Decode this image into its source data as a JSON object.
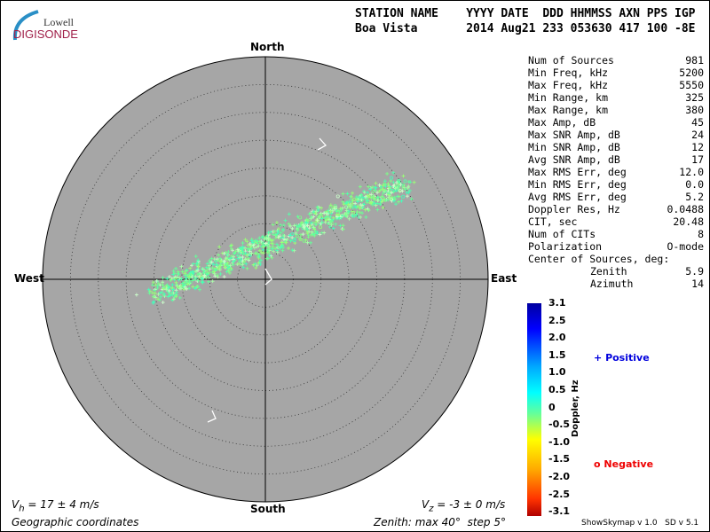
{
  "logo": {
    "line1": "Lowell",
    "line2": "DIGISONDE"
  },
  "header": {
    "labels": "STATION NAME    YYYY DATE  DDD HHMMSS AXN PPS IGP",
    "values": "Boa Vista       2014 Aug21 233 053630 417 100 -8E"
  },
  "compass": {
    "north": "North",
    "south": "South",
    "east": "East",
    "west": "West"
  },
  "stats": [
    {
      "label": "Num of Sources",
      "value": "981"
    },
    {
      "label": "Min Freq, kHz",
      "value": "5200"
    },
    {
      "label": "Max Freq, kHz",
      "value": "5550"
    },
    {
      "label": "Min Range, km",
      "value": "325"
    },
    {
      "label": "Max Range, km",
      "value": "380"
    },
    {
      "label": "Max Amp, dB",
      "value": "45"
    },
    {
      "label": "Max SNR Amp, dB",
      "value": "24"
    },
    {
      "label": "Min SNR Amp, dB",
      "value": "12"
    },
    {
      "label": "Avg SNR Amp, dB",
      "value": "17"
    },
    {
      "label": "Max RMS Err, deg",
      "value": "12.0"
    },
    {
      "label": "Min RMS Err, deg",
      "value": "0.0"
    },
    {
      "label": "Avg RMS Err, deg",
      "value": "5.2"
    },
    {
      "label": "Doppler Res, Hz",
      "value": "0.0488"
    },
    {
      "label": "CIT, sec",
      "value": "20.48"
    },
    {
      "label": "Num of CITs",
      "value": "8"
    },
    {
      "label": "Polarization",
      "value": "O-mode"
    }
  ],
  "center": {
    "label": "Center of Sources, deg:",
    "zenith_label": "Zenith",
    "zenith": "5.9",
    "azimuth_label": "Azimuth",
    "azimuth": "14"
  },
  "footer": {
    "vh": "V",
    "vh_sub": "h",
    "vh_rest": " = 17 ± 4 m/s",
    "vz": "V",
    "vz_sub": "z",
    "vz_rest": " = -3 ± 0 m/s",
    "coords": "Geographic coordinates",
    "zenith": "Zenith: max 40°  step 5°",
    "version": "ShowSkymap v 1.0   SD v 5.1"
  },
  "legend": {
    "positive": "Positive",
    "negative": "Negative",
    "positive_symbol": "+",
    "negative_symbol": "o",
    "positive_color": "#0000dd",
    "negative_color": "#ee0000"
  },
  "colorbar": {
    "title": "Doppler, Hz",
    "ticks": [
      "3.1",
      "2.5",
      "2.0",
      "1.5",
      "1.0",
      "0.5",
      "0",
      "-0.5",
      "-1.0",
      "-1.5",
      "-2.0",
      "-2.5",
      "-3.1"
    ]
  },
  "chart_data": {
    "type": "scatter",
    "projection": "polar skymap",
    "zenith_max_deg": 40,
    "zenith_step_deg": 5,
    "num_sources": 981,
    "color_scale": {
      "label": "Doppler, Hz",
      "range": [
        -3.1,
        3.1
      ]
    },
    "cluster": {
      "center_zenith_deg": 5.9,
      "center_azimuth_deg": 14,
      "dominant_doppler_hz": 0.2
    },
    "background_color": "#a6a6a6"
  }
}
